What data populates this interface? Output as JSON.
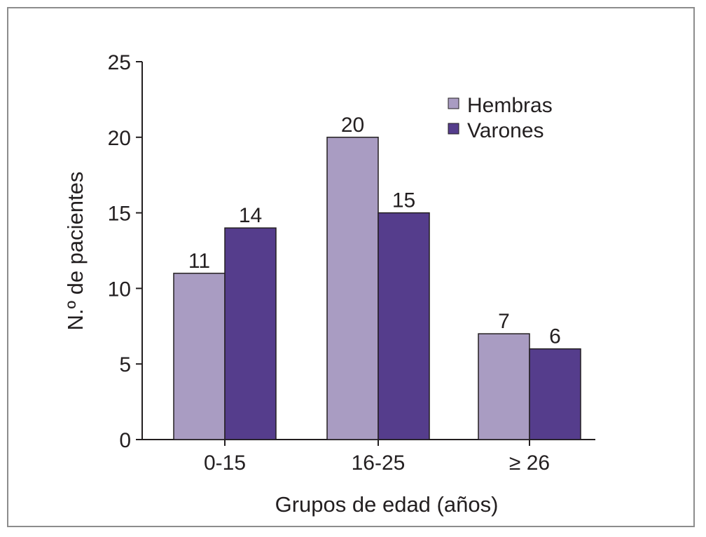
{
  "chart_data": {
    "type": "bar",
    "title": "",
    "xlabel": "Grupos de edad (años)",
    "ylabel": "N.º de pacientes",
    "categories": [
      "0-15",
      "16-25",
      "≥ 26"
    ],
    "series": [
      {
        "name": "Hembras",
        "values": [
          11,
          20,
          7
        ],
        "color": "#a99cc2",
        "data_labels": [
          "11",
          "20",
          "7"
        ]
      },
      {
        "name": "Varones",
        "values": [
          14,
          15,
          6
        ],
        "color": "#553d8c",
        "data_labels": [
          "14",
          "15",
          "6"
        ]
      }
    ],
    "ylim": [
      0,
      25
    ],
    "yticks": [
      0,
      5,
      10,
      15,
      20,
      25
    ],
    "grid": false,
    "legend_position": "top-right",
    "bar_outline_color": "#231f20",
    "axis_color": "#231f20"
  }
}
